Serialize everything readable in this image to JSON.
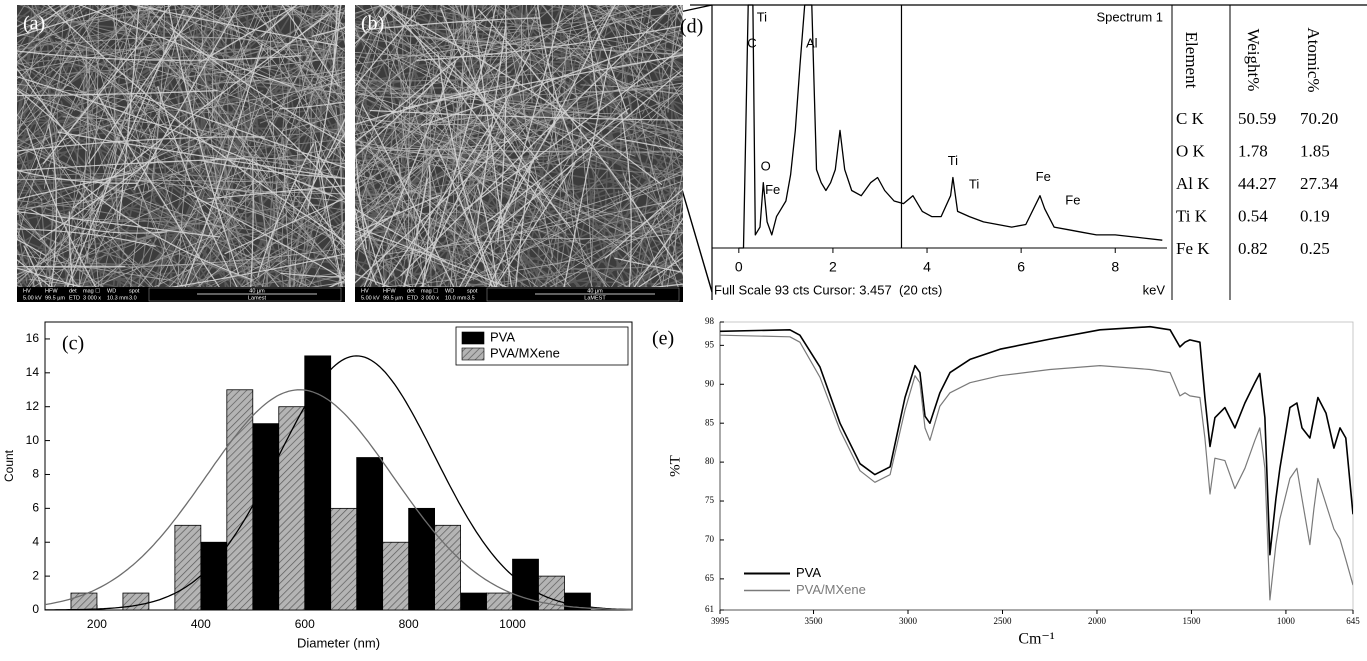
{
  "sem_panels": [
    {
      "label": "(a)",
      "info_header": [
        "HV",
        "HFW",
        "det",
        "mag ☐",
        "WD",
        "spot"
      ],
      "info_values": [
        "5.00 kV",
        "99.5 µm",
        "ETD",
        "3 000 x",
        "10.3 mm",
        "3.0"
      ],
      "scale_bar": "40 µm",
      "lab": "Lamest"
    },
    {
      "label": "(b)",
      "info_header": [
        "HV",
        "HFW",
        "det",
        "mag ☐",
        "WD",
        "spot"
      ],
      "info_values": [
        "5.00 kV",
        "99.5 µm",
        "ETD",
        "3 000 x",
        "10.0 mm",
        "3.5"
      ],
      "scale_bar": "40 µm",
      "lab": "LaMEST"
    }
  ],
  "eds_table": {
    "headers": [
      "Element",
      "Weight%",
      "Atomic%"
    ],
    "rows": [
      [
        "C K",
        "50.59",
        "70.20"
      ],
      [
        "O K",
        "1.78",
        "1.85"
      ],
      [
        "Al K",
        "44.27",
        "27.34"
      ],
      [
        "Ti K",
        "0.54",
        "0.19"
      ],
      [
        "Fe K",
        "0.82",
        "0.25"
      ]
    ]
  },
  "chart_data": [
    {
      "type": "line",
      "panel_label": "(d)",
      "title": "Spectrum 1",
      "footer": "Full Scale 93 cts Cursor: 3.457  (20 cts)",
      "xlabel": "keV",
      "x": [
        0.0,
        0.1,
        0.2,
        0.3,
        0.35,
        0.45,
        0.52,
        0.6,
        0.7,
        0.8,
        0.9,
        1.0,
        1.1,
        1.2,
        1.3,
        1.4,
        1.5,
        1.55,
        1.65,
        1.75,
        1.85,
        1.95,
        2.05,
        2.15,
        2.25,
        2.4,
        2.6,
        2.8,
        2.95,
        3.1,
        3.3,
        3.5,
        3.7,
        3.9,
        4.1,
        4.3,
        4.5,
        4.55,
        4.65,
        4.9,
        5.2,
        5.5,
        5.8,
        6.1,
        6.4,
        6.5,
        6.7,
        7.0,
        7.3,
        7.6,
        8.0,
        8.5,
        9.0
      ],
      "values": [
        0,
        0,
        93,
        93,
        5,
        8,
        25,
        10,
        5,
        12,
        15,
        18,
        28,
        45,
        70,
        93,
        93,
        93,
        30,
        25,
        22,
        25,
        30,
        45,
        30,
        22,
        20,
        25,
        27,
        22,
        18,
        17,
        20,
        14,
        12,
        12,
        20,
        27,
        14,
        12,
        10,
        9,
        8,
        9,
        20,
        15,
        8,
        7,
        6,
        5,
        5,
        4,
        3
      ],
      "color": "#000000",
      "cursor": 3.457,
      "xlim": [
        -0.57,
        9.1
      ],
      "xticks": [
        0,
        2,
        4,
        6,
        8
      ],
      "ylim": [
        0,
        93
      ],
      "annotations": [
        {
          "text": "C",
          "x": 0.28,
          "y": 78
        },
        {
          "text": "Ti",
          "x": 0.49,
          "y": 88
        },
        {
          "text": "Al",
          "x": 1.55,
          "y": 78
        },
        {
          "text": "O",
          "x": 0.57,
          "y": 31
        },
        {
          "text": "Fe",
          "x": 0.72,
          "y": 22
        },
        {
          "text": "Ti",
          "x": 4.55,
          "y": 33
        },
        {
          "text": "Ti",
          "x": 5.0,
          "y": 24
        },
        {
          "text": "Fe",
          "x": 6.47,
          "y": 27
        },
        {
          "text": "Fe",
          "x": 7.1,
          "y": 18
        }
      ]
    },
    {
      "type": "histogram",
      "panel_label": "(c)",
      "xlabel": "Diameter (nm)",
      "ylabel": "Count",
      "bins": [
        150,
        250,
        350,
        450,
        550,
        650,
        750,
        850,
        950,
        1050,
        1150
      ],
      "series": [
        {
          "name": "PVA",
          "color": "#000000",
          "values": [
            0,
            0,
            4,
            11,
            15,
            9,
            6,
            1,
            3,
            1
          ],
          "fit": {
            "mean": 700,
            "sd": 150,
            "peak": 15,
            "color": "#000000"
          }
        },
        {
          "name": "PVA/MXene",
          "color": "#b4b4b4",
          "hatch": true,
          "values": [
            1,
            1,
            5,
            13,
            12,
            6,
            4,
            5,
            1,
            2
          ],
          "fit": {
            "mean": 590,
            "sd": 180,
            "peak": 13,
            "color": "#6e6e6e"
          }
        }
      ],
      "xlim": [
        100,
        1230
      ],
      "xticks": [
        200,
        400,
        600,
        800,
        1000
      ],
      "ylim": [
        0,
        17
      ],
      "yticks": [
        0,
        2,
        4,
        6,
        8,
        10,
        12,
        14,
        16
      ],
      "legend": "upper right"
    },
    {
      "type": "line",
      "panel_label": "(e)",
      "xlabel": "Cm⁻¹",
      "ylabel": "%T",
      "x": [
        3995,
        3625,
        3572,
        3466,
        3360,
        3254,
        3175,
        3095,
        3016,
        2963,
        2937,
        2910,
        2884,
        2831,
        2778,
        2672,
        2513,
        2249,
        1984,
        1719,
        1613,
        1561,
        1534,
        1508,
        1455,
        1429,
        1402,
        1376,
        1323,
        1270,
        1217,
        1164,
        1138,
        1111,
        1085,
        1053,
        1032,
        979,
        942,
        915,
        873,
        852,
        831,
        788,
        746,
        714,
        683,
        645
      ],
      "series": [
        {
          "name": "PVA",
          "color": "#000000",
          "values": [
            96.8,
            97.0,
            96.3,
            92.2,
            85,
            79.8,
            78.4,
            79.4,
            88.3,
            92.4,
            91.5,
            85.9,
            85,
            88.9,
            91.5,
            93.2,
            94.5,
            95.8,
            97,
            97.4,
            97,
            94.8,
            95.4,
            95.7,
            95.4,
            88.3,
            82,
            85.7,
            87,
            84.4,
            87.6,
            90.2,
            91.4,
            85.7,
            68.1,
            75.3,
            79.2,
            87,
            87.6,
            84.4,
            83.1,
            85.7,
            88.3,
            86.3,
            81.8,
            84.4,
            83.1,
            73.3
          ]
        },
        {
          "name": "PVA/MXene",
          "color": "#7a7a7a",
          "values": [
            96.3,
            96.1,
            95.4,
            90.9,
            84.1,
            78.9,
            77.4,
            78.4,
            86.7,
            91.1,
            90.2,
            84.4,
            82.8,
            87.2,
            88.9,
            90.2,
            91.1,
            91.9,
            92.4,
            91.9,
            91.5,
            88.5,
            88.9,
            88.5,
            88.3,
            83.1,
            75.9,
            80.5,
            80.2,
            76.6,
            79.2,
            82.8,
            84.4,
            79.2,
            62.3,
            69.4,
            72.7,
            77.9,
            79.2,
            75.3,
            69.4,
            74,
            77.9,
            74.6,
            71.4,
            70.1,
            67.5,
            64.2
          ]
        }
      ],
      "xlim": [
        3995,
        645
      ],
      "xticks": [
        3995,
        3500,
        3000,
        2500,
        2000,
        1500,
        1000,
        645
      ],
      "ylim": [
        61,
        98
      ],
      "yticks": [
        98,
        95,
        90,
        85,
        80,
        75,
        70,
        65,
        61
      ],
      "legend": "lower left"
    }
  ]
}
